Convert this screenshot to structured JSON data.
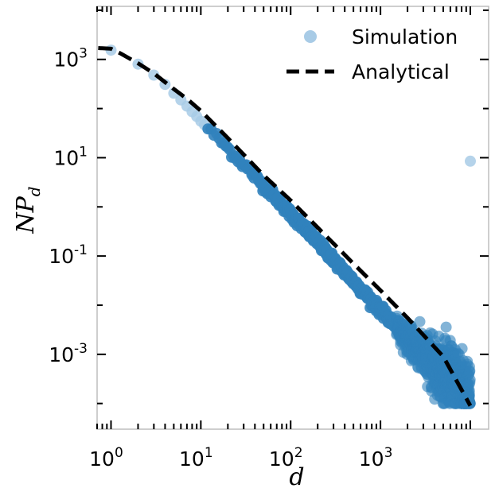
{
  "chart_data": {
    "type": "scatter",
    "xscale": "log",
    "yscale": "log",
    "xlim": [
      0.7,
      16000
    ],
    "ylim": [
      3e-05,
      12000
    ],
    "xlabel": "d",
    "ylabel": "NP_d",
    "ylabel_main": "NP",
    "ylabel_sub": "d",
    "xticks": [
      {
        "value": 1,
        "base": "10",
        "exp": "0"
      },
      {
        "value": 10,
        "base": "10",
        "exp": "1"
      },
      {
        "value": 100,
        "base": "10",
        "exp": "2"
      },
      {
        "value": 1000,
        "base": "10",
        "exp": "3"
      }
    ],
    "yticks": [
      {
        "value": 1000,
        "base": "10",
        "exp": "3"
      },
      {
        "value": 10,
        "base": "10",
        "exp": "1"
      },
      {
        "value": 0.1,
        "base": "10",
        "exp": "-1"
      },
      {
        "value": 0.001,
        "base": "10",
        "exp": "-3"
      }
    ],
    "legend": {
      "position": "top-right",
      "items": [
        {
          "label": "Simulation",
          "marker": "circle"
        },
        {
          "label": "Analytical",
          "marker": "dashed-line"
        }
      ]
    },
    "series": [
      {
        "name": "Simulation",
        "kind": "scatter",
        "color": "#3182bd",
        "light_color": "#a8cbe6",
        "x": [
          1,
          2,
          3,
          4,
          5,
          6,
          7,
          8,
          9,
          10,
          12,
          14,
          17,
          20,
          25,
          30,
          40,
          50,
          70,
          100,
          150,
          200,
          300,
          500,
          700,
          1000,
          1500,
          2000,
          3000,
          5000,
          8000,
          10000
        ],
        "y": [
          1540,
          800,
          480,
          310,
          205,
          150,
          112,
          86,
          69,
          55,
          40,
          30,
          21,
          15.5,
          10.2,
          7.3,
          4.2,
          2.75,
          1.45,
          0.72,
          0.33,
          0.19,
          0.085,
          0.031,
          0.016,
          0.0078,
          0.0037,
          0.0021,
          0.00098,
          0.00045,
          0.00022,
          0.0001
        ],
        "outlier": {
          "x": 10000,
          "y": 8.5
        }
      },
      {
        "name": "Analytical",
        "kind": "line",
        "style": "dashed",
        "color": "#000000",
        "x": [
          0.72,
          1,
          1.3,
          2,
          3,
          5,
          7,
          10,
          20,
          50,
          100,
          200,
          500,
          1000,
          2000,
          5000,
          10000
        ],
        "y": [
          1700,
          1650,
          1300,
          830,
          520,
          250,
          158,
          90,
          25,
          4.4,
          1.35,
          0.38,
          0.07,
          0.02,
          0.0055,
          0.0009,
          9e-05
        ]
      }
    ]
  }
}
